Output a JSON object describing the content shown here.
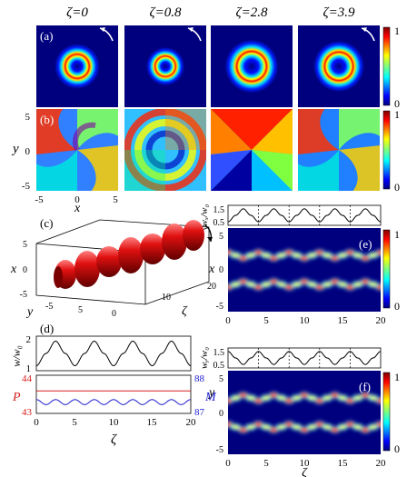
{
  "figure": {
    "zeta_symbol": "ζ",
    "columns": [
      "ζ=0",
      "ζ=0.8",
      "ζ=2.8",
      "ζ=3.9"
    ],
    "panel_labels": [
      "(a)",
      "(b)",
      "(c)",
      "(d)",
      "(e)",
      "(f)"
    ],
    "colorbar_ticks": [
      "1",
      "0"
    ],
    "rows_ab_axes": {
      "x_ticks": [
        "-5",
        "0",
        "5"
      ],
      "y_ticks": [
        "5",
        "0",
        "-5"
      ],
      "xlabel": "x",
      "ylabel": "y"
    },
    "panel_c_axes": {
      "x_label": "x",
      "y_label": "y",
      "zeta_label": "ζ",
      "x_ticks": [
        "5",
        "0",
        "-5"
      ],
      "y_ticks": [
        "-5",
        "5"
      ],
      "zeta_ticks": [
        "0",
        "10",
        "20"
      ]
    },
    "panel_d_axes": {
      "ylabel": "w/w₀",
      "y_ticks": [
        "2",
        "1"
      ],
      "P_label": "P",
      "M_label": "M",
      "P_ticks": [
        "44",
        "43"
      ],
      "M_ticks": [
        "88",
        "87"
      ],
      "x_ticks": [
        "0",
        "5",
        "10",
        "15",
        "20"
      ],
      "xlabel": "ζ"
    },
    "panel_e_axes": {
      "top_ylabel": "wₓ/w₀",
      "top_ticks": [
        "1.5",
        "0.5"
      ],
      "ylabel": "x",
      "y_ticks": [
        "5",
        "0",
        "-5"
      ],
      "x_ticks": [
        "0",
        "5",
        "10",
        "15",
        "20"
      ]
    },
    "panel_f_axes": {
      "top_ylabel": "wᵧ/w₀",
      "top_ticks": [
        "1.5",
        "0.5"
      ],
      "ylabel": "y",
      "y_ticks": [
        "5",
        "0",
        "-5"
      ],
      "x_ticks": [
        "0",
        "5",
        "10",
        "15",
        "20"
      ],
      "xlabel": "ζ"
    },
    "colors": {
      "jet_low": "#00007f",
      "jet_high": "#7f0000",
      "red_line": "#d62020",
      "blue_line": "#1f1fd0"
    }
  },
  "chart_data": [
    {
      "type": "line",
      "title": "",
      "xlabel": "ζ",
      "ylabel": "w/w₀",
      "xlim": [
        0,
        20
      ],
      "ylim": [
        1,
        2
      ],
      "series": [
        {
          "x": [
            0,
            1.25,
            2.5,
            3.75,
            5,
            6.25,
            7.5,
            8.75,
            10,
            11.25,
            12.5,
            13.75,
            15,
            16.25,
            17.5,
            18.75,
            20
          ],
          "values": [
            1.1,
            1.5,
            1.9,
            1.5,
            1.1,
            1.5,
            1.9,
            1.5,
            1.1,
            1.5,
            1.9,
            1.5,
            1.1,
            1.5,
            1.9,
            1.5,
            1.1
          ]
        }
      ]
    },
    {
      "type": "line",
      "title": "",
      "xlabel": "ζ",
      "ylabel": "P",
      "xlim": [
        0,
        20
      ],
      "ylim": [
        43,
        44
      ],
      "series": [
        {
          "name": "P",
          "x": [
            0,
            20
          ],
          "values": [
            43.6,
            43.6
          ]
        },
        {
          "name": "M",
          "x": [
            0,
            1.25,
            2.5,
            3.75,
            5,
            6.25,
            7.5,
            8.75,
            10,
            11.25,
            12.5,
            13.75,
            15,
            16.25,
            17.5,
            18.75,
            20
          ],
          "values": [
            87.35,
            87.2,
            87.35,
            87.2,
            87.35,
            87.2,
            87.35,
            87.2,
            87.35,
            87.2,
            87.35,
            87.2,
            87.35,
            87.2,
            87.35,
            87.2,
            87.35
          ]
        }
      ]
    },
    {
      "type": "line",
      "title": "",
      "xlabel": "ζ",
      "ylabel": "wₓ/w₀",
      "xlim": [
        0,
        20
      ],
      "ylim": [
        0.5,
        1.5
      ],
      "series": [
        {
          "x": [
            0,
            1,
            2,
            3,
            4,
            5,
            6,
            7,
            8,
            9,
            10,
            11,
            12,
            13,
            14,
            15,
            16,
            17,
            18,
            19,
            20
          ],
          "values": [
            0.6,
            1.0,
            1.4,
            1.0,
            0.6,
            1.0,
            1.4,
            1.0,
            0.6,
            1.0,
            1.4,
            1.0,
            0.6,
            1.0,
            1.4,
            1.0,
            0.6,
            1.0,
            1.4,
            1.0,
            0.6
          ]
        }
      ]
    },
    {
      "type": "line",
      "title": "",
      "xlabel": "ζ",
      "ylabel": "wᵧ/w₀",
      "xlim": [
        0,
        20
      ],
      "ylim": [
        0.5,
        1.5
      ],
      "series": [
        {
          "x": [
            0,
            1,
            2,
            3,
            4,
            5,
            6,
            7,
            8,
            9,
            10,
            11,
            12,
            13,
            14,
            15,
            16,
            17,
            18,
            19,
            20
          ],
          "values": [
            1.4,
            1.0,
            0.6,
            1.0,
            1.4,
            1.0,
            0.6,
            1.0,
            1.4,
            1.0,
            0.6,
            1.0,
            1.4,
            1.0,
            0.6,
            1.0,
            1.4,
            1.0,
            0.6,
            1.0,
            1.4
          ]
        }
      ]
    }
  ]
}
